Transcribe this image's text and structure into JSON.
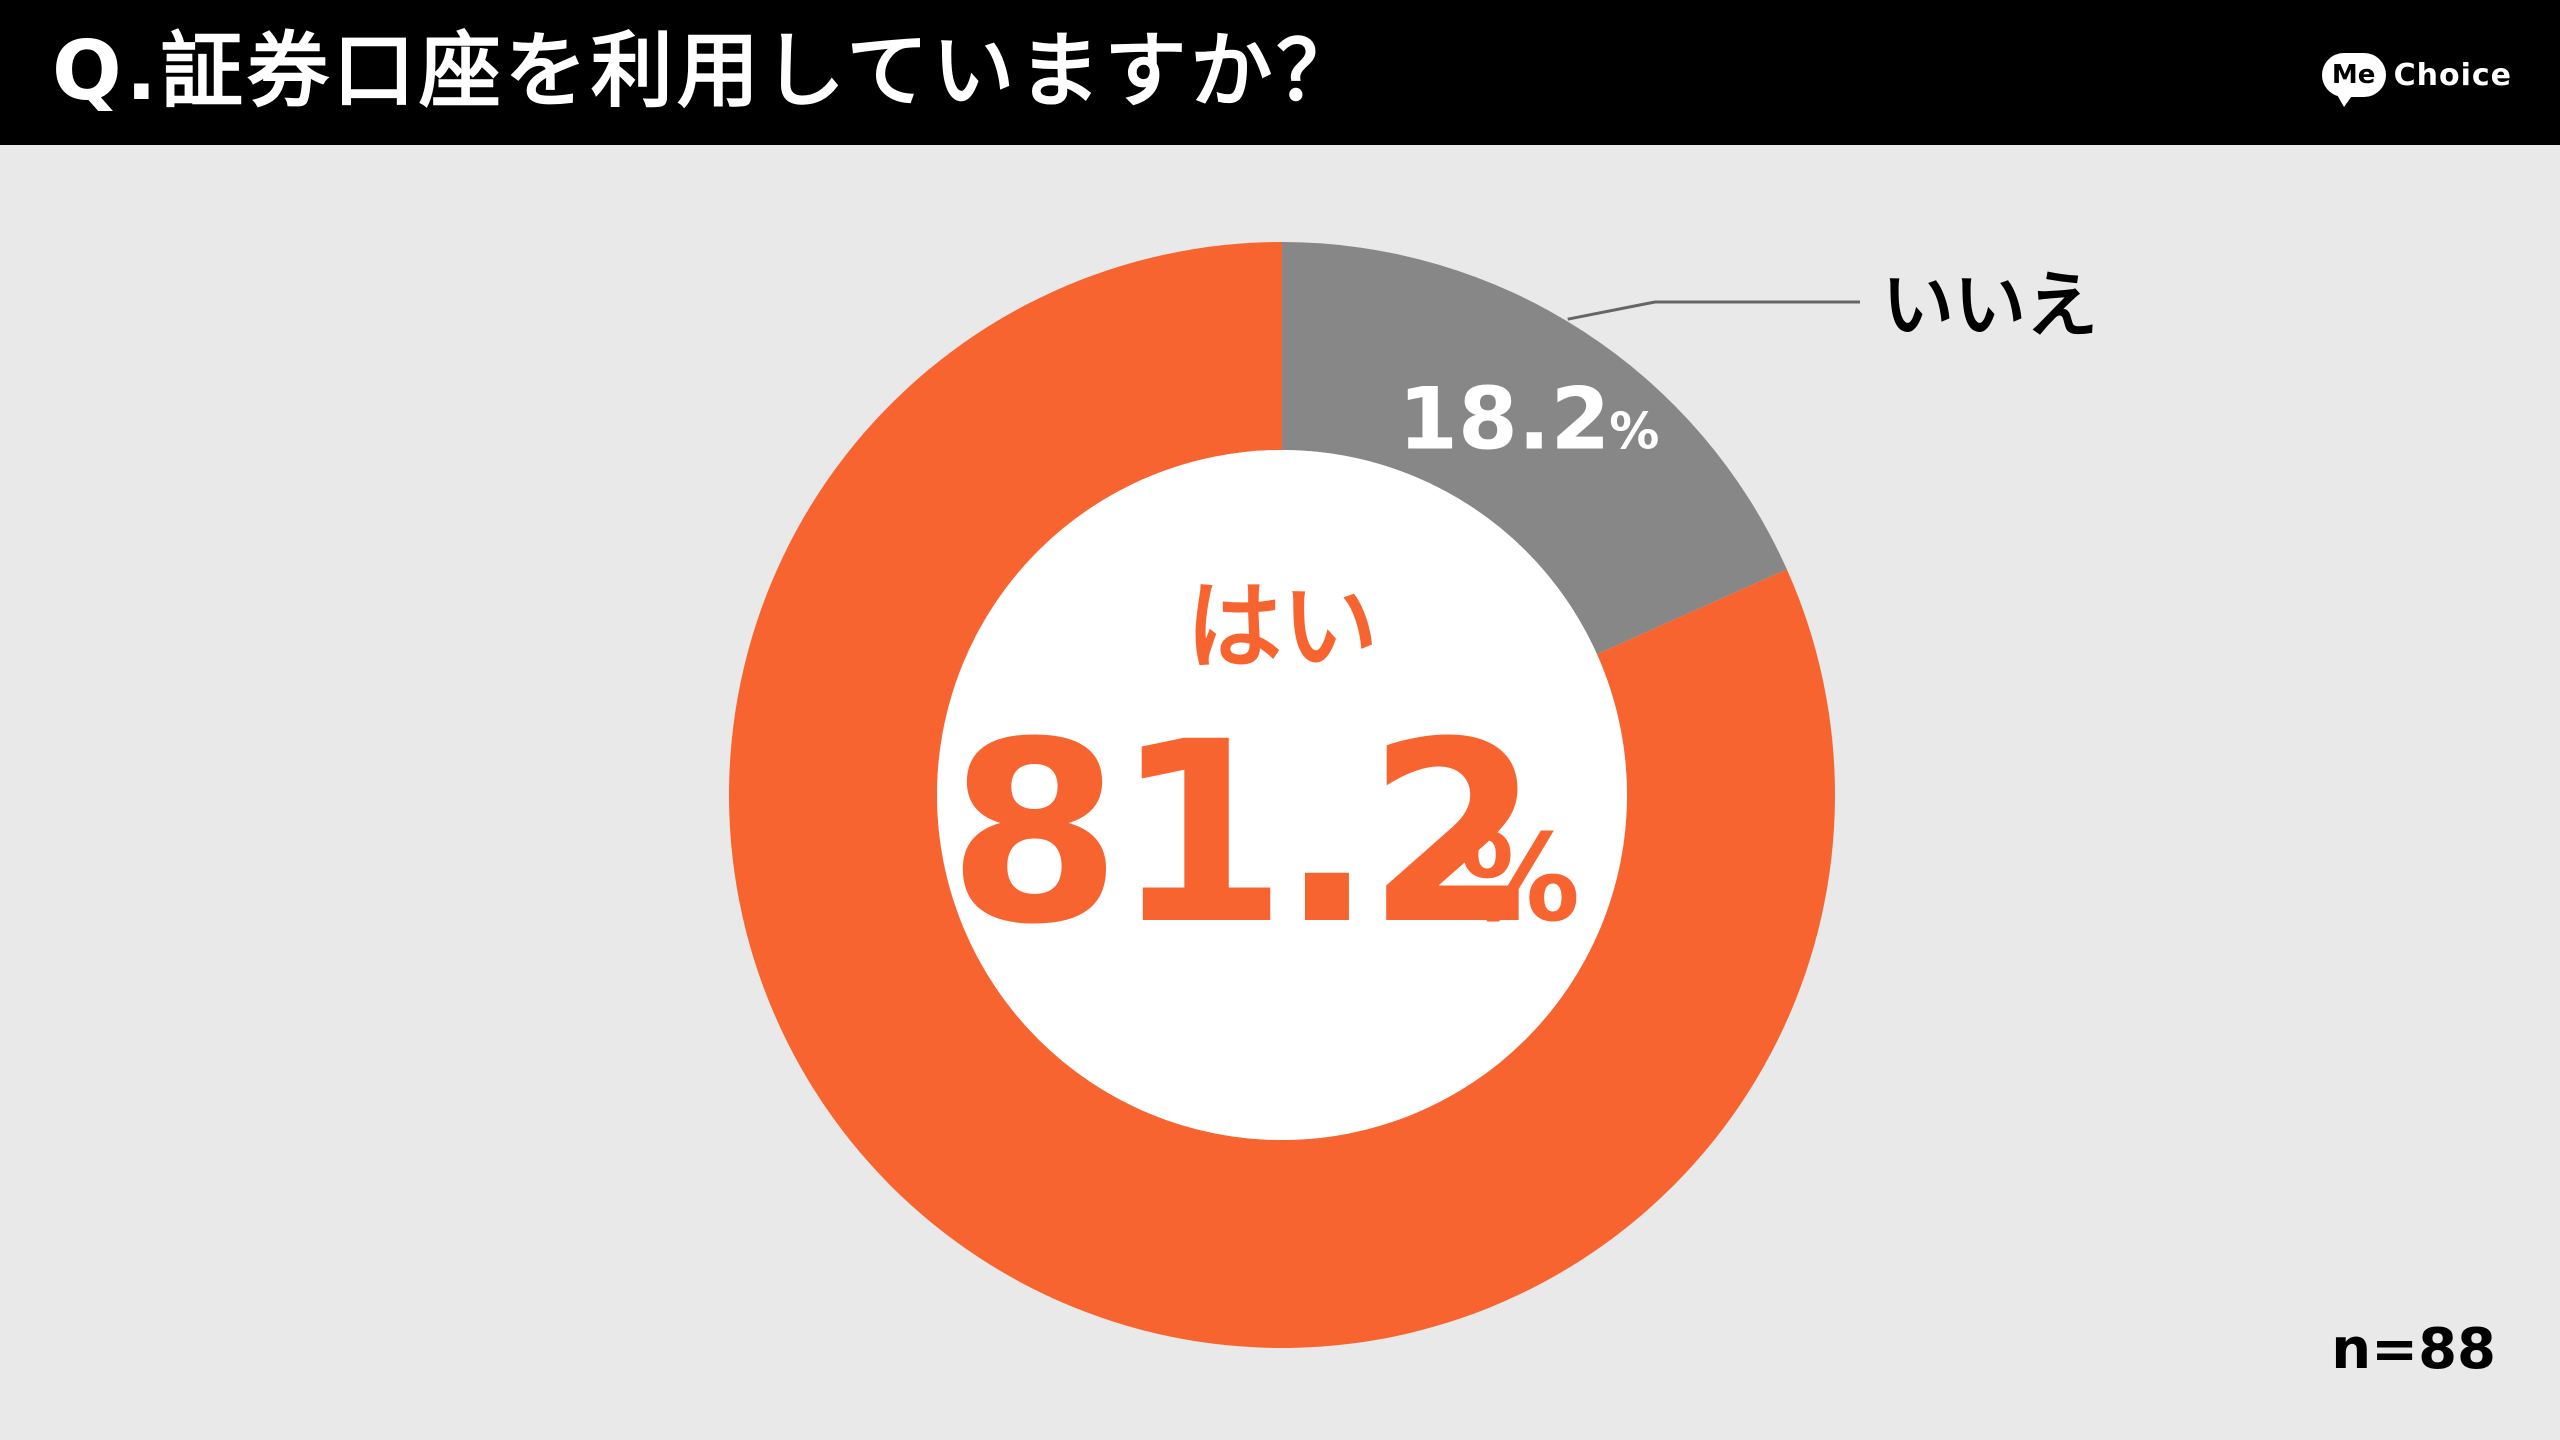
{
  "header": {
    "title": "Q.証券口座を利用していますか？",
    "brand_bubble": "Me",
    "brand_text": "Choice"
  },
  "chart_data": {
    "type": "pie",
    "style": "donut",
    "categories": [
      "はい",
      "いいえ"
    ],
    "values": [
      81.2,
      18.2
    ],
    "value_suffix": "%",
    "colors": [
      "#f86430",
      "#878787"
    ],
    "start": "top",
    "direction": "clockwise-from-second",
    "legend": "none",
    "labels": [
      {
        "category": "はい",
        "value": "81.2",
        "suffix": "%"
      },
      {
        "category": "いいえ",
        "value": "18.2",
        "suffix": "%"
      }
    ]
  },
  "footer": {
    "sample_size": "n=88"
  }
}
